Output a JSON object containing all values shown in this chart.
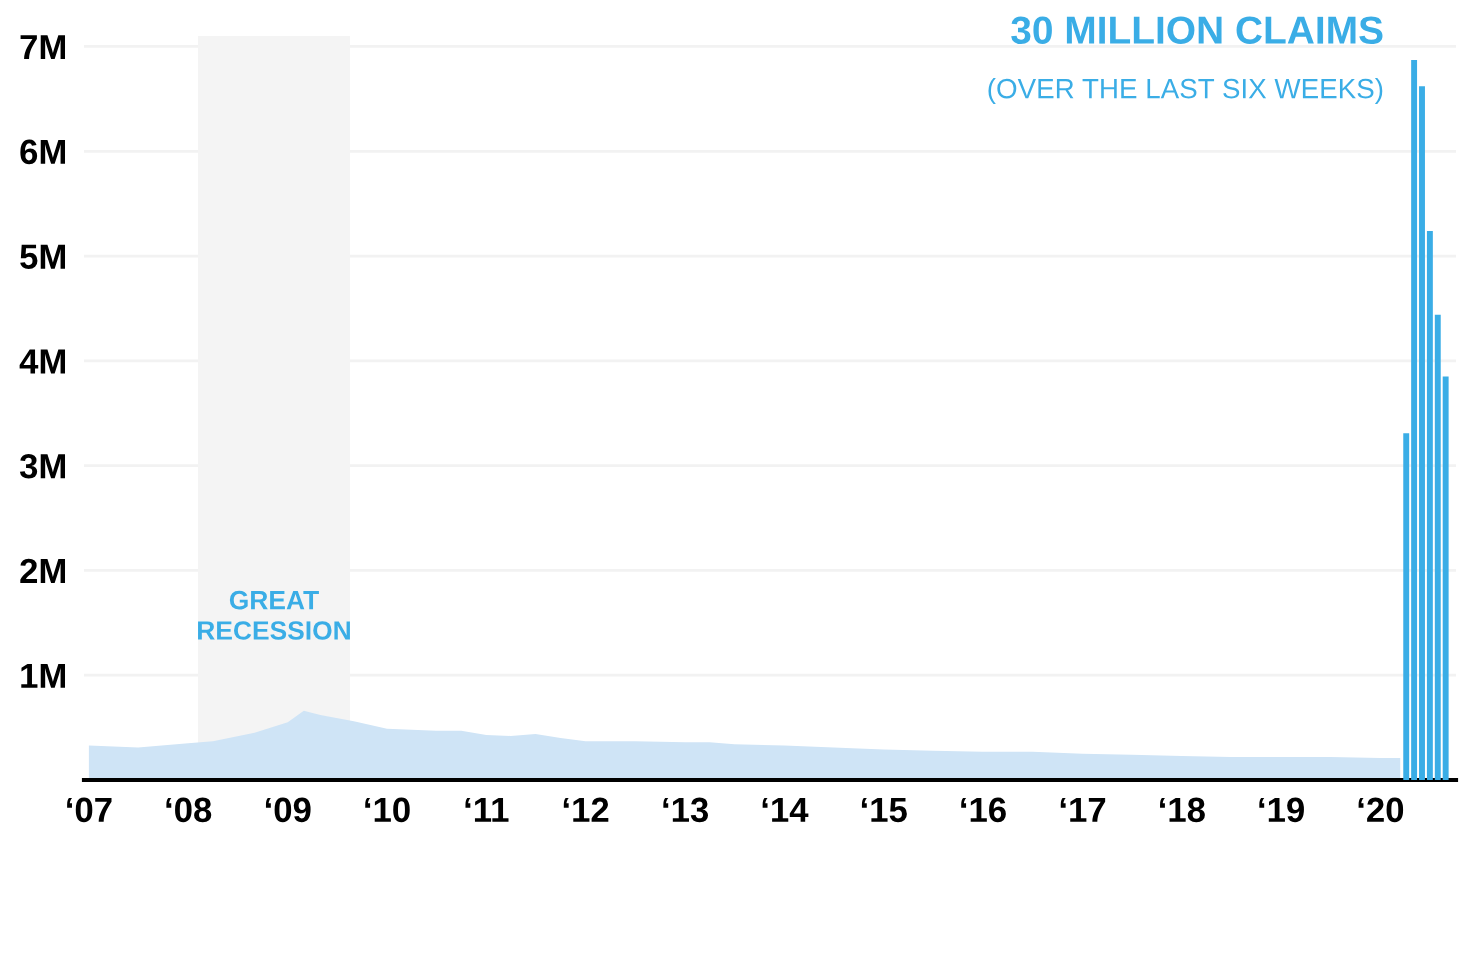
{
  "chart_data": {
    "type": "area",
    "series": [
      {
        "color": "#cfe4f6",
        "x": [
          "2007-01",
          "2007-07",
          "2008-01",
          "2008-04",
          "2008-09",
          "2009-01",
          "2009-03",
          "2009-05",
          "2009-09",
          "2010-01",
          "2010-07",
          "2010-10",
          "2011-01",
          "2011-04",
          "2011-07",
          "2011-10",
          "2012-01",
          "2012-07",
          "2013-01",
          "2013-04",
          "2013-07",
          "2014-01",
          "2014-07",
          "2015-01",
          "2015-07",
          "2016-01",
          "2016-07",
          "2017-01",
          "2017-07",
          "2018-01",
          "2018-07",
          "2019-01",
          "2019-07",
          "2020-01",
          "2020-03-14"
        ],
        "values": [
          0.33,
          0.31,
          0.35,
          0.37,
          0.45,
          0.55,
          0.66,
          0.62,
          0.56,
          0.49,
          0.47,
          0.47,
          0.43,
          0.42,
          0.44,
          0.4,
          0.37,
          0.37,
          0.36,
          0.36,
          0.34,
          0.33,
          0.31,
          0.29,
          0.28,
          0.27,
          0.27,
          0.25,
          0.24,
          0.23,
          0.22,
          0.22,
          0.22,
          0.21,
          0.21
        ]
      },
      {
        "type": "bar",
        "color": "#3aade6",
        "x": [
          "2020-04-05",
          "2020-05-04",
          "2020-06-02",
          "2020-07-01",
          "2020-07-30",
          "2020-08-28"
        ],
        "values": [
          3.31,
          6.87,
          6.62,
          5.24,
          4.44,
          3.85
        ]
      }
    ],
    "xlim": [
      "2006-12-14",
      "2020-10-05"
    ],
    "xticks": [
      {
        "value": "2007",
        "label": "‘07"
      },
      {
        "value": "2008",
        "label": "‘08"
      },
      {
        "value": "2009",
        "label": "‘09"
      },
      {
        "value": "2010",
        "label": "‘10"
      },
      {
        "value": "2011",
        "label": "‘11"
      },
      {
        "value": "2012",
        "label": "‘12"
      },
      {
        "value": "2013",
        "label": "‘13"
      },
      {
        "value": "2014",
        "label": "‘14"
      },
      {
        "value": "2015",
        "label": "‘15"
      },
      {
        "value": "2016",
        "label": "‘16"
      },
      {
        "value": "2017",
        "label": "‘17"
      },
      {
        "value": "2018",
        "label": "‘18"
      },
      {
        "value": "2019",
        "label": "‘19"
      },
      {
        "value": "2020",
        "label": "‘20"
      }
    ],
    "ylim": [
      0,
      7.1
    ],
    "yticks": [
      {
        "value": 1,
        "label": "1M"
      },
      {
        "value": 2,
        "label": "2M"
      },
      {
        "value": 3,
        "label": "3M"
      },
      {
        "value": 4,
        "label": "4M"
      },
      {
        "value": 5,
        "label": "5M"
      },
      {
        "value": 6,
        "label": "6M"
      },
      {
        "value": 7,
        "label": "7M"
      }
    ],
    "grid": "y",
    "bands": [
      {
        "axis": "x",
        "from": "2008-02-06",
        "to": "2009-08-18",
        "label": "GREAT\nRECESSION",
        "color": "#f4f4f4"
      }
    ],
    "annotations": [
      "30 MILLION CLAIMS",
      "(OVER THE LAST SIX WEEKS)"
    ]
  }
}
